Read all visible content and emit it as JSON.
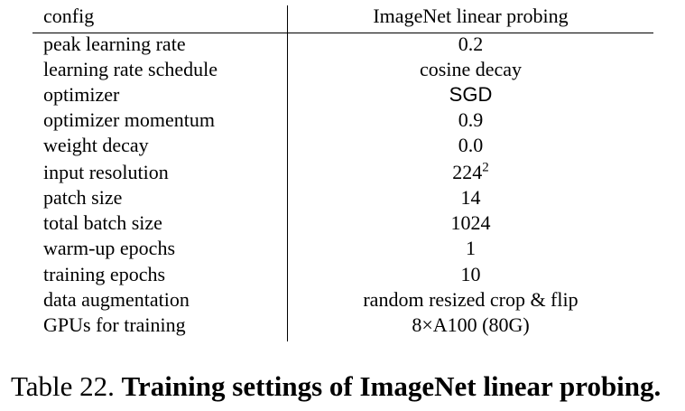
{
  "table": {
    "header": {
      "left": "config",
      "right": "ImageNet linear probing"
    },
    "rows": [
      {
        "label": "peak learning rate",
        "value": "0.2"
      },
      {
        "label": "learning rate schedule",
        "value": "cosine decay"
      },
      {
        "label": "optimizer",
        "value": "SGD"
      },
      {
        "label": "optimizer momentum",
        "value": "0.9"
      },
      {
        "label": "weight decay",
        "value": "0.0"
      },
      {
        "label": "input resolution",
        "value": "224",
        "value_sup": "2"
      },
      {
        "label": "patch size",
        "value": "14"
      },
      {
        "label": "total batch size",
        "value": "1024"
      },
      {
        "label": "warm-up epochs",
        "value": "1"
      },
      {
        "label": "training epochs",
        "value": "10"
      },
      {
        "label": "data augmentation",
        "value": "random resized crop & flip"
      },
      {
        "label": "GPUs for training",
        "value": "8×A100 (80G)"
      }
    ]
  },
  "caption": {
    "prefix": "Table 22.",
    "title": "Training settings of ImageNet linear probing."
  }
}
